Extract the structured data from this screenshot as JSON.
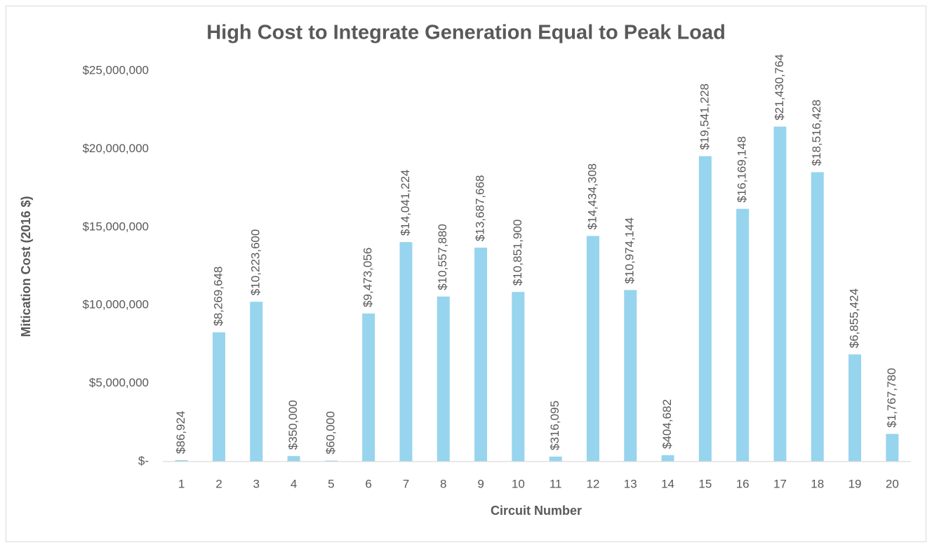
{
  "chart_data": {
    "type": "bar",
    "title": "High Cost to Integrate Generation Equal to Peak Load",
    "x_label": "Circuit Number",
    "y_label": "Mitication Cost (2016 $)",
    "categories": [
      "1",
      "2",
      "3",
      "4",
      "5",
      "6",
      "7",
      "8",
      "9",
      "10",
      "11",
      "12",
      "13",
      "14",
      "15",
      "16",
      "17",
      "18",
      "19",
      "20"
    ],
    "values": [
      86924,
      8269648,
      10223600,
      350000,
      60000,
      9473056,
      14041224,
      10557880,
      13687668,
      10851900,
      316095,
      14434308,
      10974144,
      404682,
      19541228,
      16169148,
      21430764,
      18516428,
      6855424,
      1767780
    ],
    "value_labels": [
      "$86,924",
      "$8,269,648",
      "$10,223,600",
      "$350,000",
      "$60,000",
      "$9,473,056",
      "$14,041,224",
      "$10,557,880",
      "$13,687,668",
      "$10,851,900",
      "$316,095",
      "$14,434,308",
      "$10,974,144",
      "$404,682",
      "$19,541,228",
      "$16,169,148",
      "$21,430,764",
      "$18,516,428",
      "$6,855,424",
      "$1,767,780"
    ],
    "color": "#97d4ee",
    "ylim": [
      0,
      25000000
    ],
    "yticks": [
      {
        "value": 0,
        "label": "$-"
      },
      {
        "value": 5000000,
        "label": "$5,000,000"
      },
      {
        "value": 10000000,
        "label": "$10,000,000"
      },
      {
        "value": 15000000,
        "label": "$15,000,000"
      },
      {
        "value": 20000000,
        "label": "$20,000,000"
      },
      {
        "value": 25000000,
        "label": "$25,000,000"
      }
    ],
    "grid": false
  }
}
